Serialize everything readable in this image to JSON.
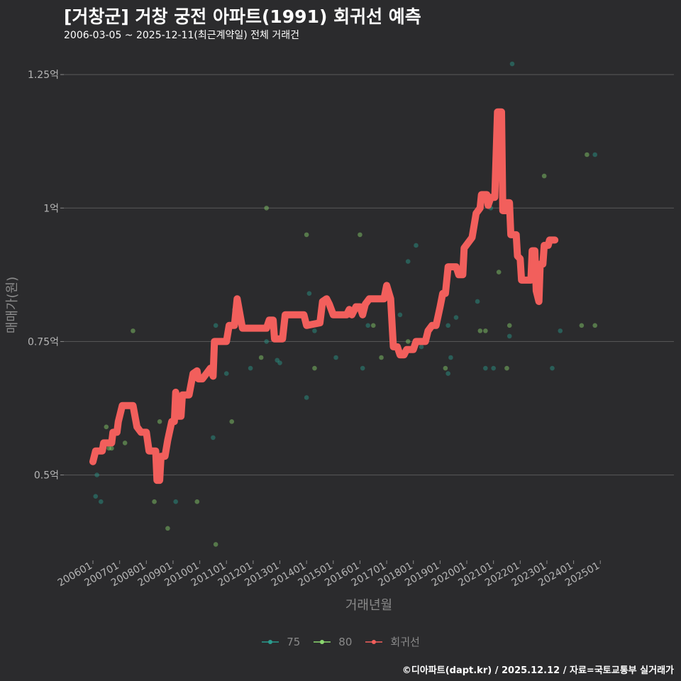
{
  "header": {
    "title": "[거창군] 거창 궁전 아파트(1991) 회귀선 예측",
    "subtitle": "2006-03-05 ~ 2025-12-11(최근계약일) 전체 거래건"
  },
  "caption": "©디아파트(dapt.kr) / 2025.12.12 / 자료=국토교통부 실거래가",
  "colors": {
    "background": "#2b2b2d",
    "grid": "#5a5a5a",
    "series_75": "#2a9d8f",
    "series_80": "#8bd86f",
    "regression": "#f25f5c"
  },
  "chart_data": {
    "type": "scatter",
    "title": "[거창군] 거창 궁전 아파트(1991) 회귀선 예측",
    "subtitle": "2006-03-05 ~ 2025-12-11(최근계약일) 전체 거래건",
    "xlabel": "거래년월",
    "ylabel": "매매가(원)",
    "xlim": [
      2006.0,
      2025.95
    ],
    "ylim": [
      0.34,
      1.29
    ],
    "x_ticks": [
      {
        "x": 2006.0,
        "label": "200601"
      },
      {
        "x": 2007.0,
        "label": "200701"
      },
      {
        "x": 2008.0,
        "label": "200801"
      },
      {
        "x": 2009.0,
        "label": "200901"
      },
      {
        "x": 2010.0,
        "label": "201001"
      },
      {
        "x": 2011.0,
        "label": "201101"
      },
      {
        "x": 2012.0,
        "label": "201201"
      },
      {
        "x": 2013.0,
        "label": "201301"
      },
      {
        "x": 2014.0,
        "label": "201401"
      },
      {
        "x": 2015.0,
        "label": "201501"
      },
      {
        "x": 2016.0,
        "label": "201601"
      },
      {
        "x": 2017.0,
        "label": "201701"
      },
      {
        "x": 2018.0,
        "label": "201801"
      },
      {
        "x": 2019.0,
        "label": "201901"
      },
      {
        "x": 2020.0,
        "label": "202001"
      },
      {
        "x": 2021.0,
        "label": "202101"
      },
      {
        "x": 2022.0,
        "label": "202201"
      },
      {
        "x": 2023.0,
        "label": "202301"
      },
      {
        "x": 2024.0,
        "label": "202401"
      },
      {
        "x": 2025.0,
        "label": "202501"
      }
    ],
    "y_ticks": [
      {
        "y": 0.5,
        "label": "0.5억"
      },
      {
        "y": 0.75,
        "label": "0.75억"
      },
      {
        "y": 1.0,
        "label": "1억"
      },
      {
        "y": 1.25,
        "label": "1.25억"
      }
    ],
    "legend": [
      {
        "name": "75",
        "color": "#2a9d8f"
      },
      {
        "name": "80",
        "color": "#8bd86f"
      },
      {
        "name": "회귀선",
        "color": "#f25f5c"
      }
    ],
    "series": [
      {
        "name": "75",
        "type": "scatter",
        "points": [
          [
            2006.1,
            0.46
          ],
          [
            2006.15,
            0.5
          ],
          [
            2006.3,
            0.45
          ],
          [
            2009.1,
            0.45
          ],
          [
            2010.5,
            0.57
          ],
          [
            2010.6,
            0.78
          ],
          [
            2011.0,
            0.69
          ],
          [
            2011.3,
            0.81
          ],
          [
            2011.9,
            0.7
          ],
          [
            2012.5,
            0.75
          ],
          [
            2012.9,
            0.715
          ],
          [
            2013.0,
            0.71
          ],
          [
            2014.0,
            0.645
          ],
          [
            2014.1,
            0.84
          ],
          [
            2014.3,
            0.77
          ],
          [
            2015.1,
            0.72
          ],
          [
            2015.7,
            0.8
          ],
          [
            2016.3,
            0.78
          ],
          [
            2016.1,
            0.7
          ],
          [
            2017.5,
            0.8
          ],
          [
            2017.8,
            0.9
          ],
          [
            2018.1,
            0.93
          ],
          [
            2018.3,
            0.74
          ],
          [
            2019.3,
            0.69
          ],
          [
            2019.3,
            0.78
          ],
          [
            2019.4,
            0.72
          ],
          [
            2019.6,
            0.795
          ],
          [
            2020.4,
            0.825
          ],
          [
            2020.7,
            0.7
          ],
          [
            2020.9,
            1.0
          ],
          [
            2021.0,
            0.7
          ],
          [
            2021.1,
            1.15
          ],
          [
            2021.6,
            0.76
          ],
          [
            2021.7,
            1.27
          ],
          [
            2023.2,
            0.7
          ],
          [
            2023.5,
            0.77
          ],
          [
            2024.8,
            1.1
          ]
        ]
      },
      {
        "name": "80",
        "type": "scatter",
        "points": [
          [
            2006.5,
            0.59
          ],
          [
            2006.6,
            0.55
          ],
          [
            2006.7,
            0.55
          ],
          [
            2006.9,
            0.58
          ],
          [
            2007.2,
            0.56
          ],
          [
            2007.5,
            0.77
          ],
          [
            2008.3,
            0.45
          ],
          [
            2008.5,
            0.6
          ],
          [
            2008.8,
            0.4
          ],
          [
            2009.9,
            0.45
          ],
          [
            2010.6,
            0.37
          ],
          [
            2011.2,
            0.6
          ],
          [
            2012.3,
            0.72
          ],
          [
            2012.5,
            1.0
          ],
          [
            2014.0,
            0.95
          ],
          [
            2014.3,
            0.7
          ],
          [
            2016.0,
            0.95
          ],
          [
            2016.5,
            0.78
          ],
          [
            2016.8,
            0.72
          ],
          [
            2017.8,
            0.75
          ],
          [
            2019.2,
            0.7
          ],
          [
            2020.7,
            0.77
          ],
          [
            2021.5,
            0.7
          ],
          [
            2021.6,
            0.78
          ],
          [
            2022.9,
            1.06
          ],
          [
            2024.3,
            0.78
          ],
          [
            2024.5,
            1.1
          ],
          [
            2024.8,
            0.78
          ],
          [
            2021.2,
            0.88
          ],
          [
            2020.5,
            0.77
          ]
        ]
      },
      {
        "name": "회귀선",
        "type": "line",
        "points": [
          [
            2006.0,
            0.525
          ],
          [
            2006.1,
            0.545
          ],
          [
            2006.35,
            0.545
          ],
          [
            2006.4,
            0.56
          ],
          [
            2006.7,
            0.56
          ],
          [
            2006.75,
            0.58
          ],
          [
            2006.9,
            0.58
          ],
          [
            2006.95,
            0.6
          ],
          [
            2007.1,
            0.63
          ],
          [
            2007.35,
            0.63
          ],
          [
            2007.5,
            0.63
          ],
          [
            2007.65,
            0.59
          ],
          [
            2007.8,
            0.58
          ],
          [
            2008.0,
            0.58
          ],
          [
            2008.1,
            0.545
          ],
          [
            2008.35,
            0.545
          ],
          [
            2008.4,
            0.49
          ],
          [
            2008.5,
            0.49
          ],
          [
            2008.55,
            0.535
          ],
          [
            2008.7,
            0.535
          ],
          [
            2008.8,
            0.565
          ],
          [
            2008.95,
            0.6
          ],
          [
            2009.05,
            0.6
          ],
          [
            2009.1,
            0.655
          ],
          [
            2009.2,
            0.61
          ],
          [
            2009.3,
            0.61
          ],
          [
            2009.35,
            0.65
          ],
          [
            2009.6,
            0.65
          ],
          [
            2009.75,
            0.69
          ],
          [
            2009.9,
            0.695
          ],
          [
            2009.95,
            0.68
          ],
          [
            2010.1,
            0.68
          ],
          [
            2010.25,
            0.69
          ],
          [
            2010.4,
            0.7
          ],
          [
            2010.5,
            0.685
          ],
          [
            2010.55,
            0.75
          ],
          [
            2011.0,
            0.75
          ],
          [
            2011.1,
            0.78
          ],
          [
            2011.3,
            0.78
          ],
          [
            2011.4,
            0.83
          ],
          [
            2011.6,
            0.775
          ],
          [
            2012.5,
            0.775
          ],
          [
            2012.6,
            0.79
          ],
          [
            2012.75,
            0.79
          ],
          [
            2012.8,
            0.755
          ],
          [
            2013.1,
            0.755
          ],
          [
            2013.2,
            0.8
          ],
          [
            2013.9,
            0.8
          ],
          [
            2014.0,
            0.78
          ],
          [
            2014.5,
            0.785
          ],
          [
            2014.6,
            0.825
          ],
          [
            2014.75,
            0.83
          ],
          [
            2014.85,
            0.82
          ],
          [
            2015.0,
            0.8
          ],
          [
            2015.5,
            0.8
          ],
          [
            2015.6,
            0.81
          ],
          [
            2015.7,
            0.8
          ],
          [
            2015.85,
            0.815
          ],
          [
            2016.0,
            0.815
          ],
          [
            2016.1,
            0.8
          ],
          [
            2016.2,
            0.82
          ],
          [
            2016.35,
            0.83
          ],
          [
            2016.9,
            0.83
          ],
          [
            2017.0,
            0.855
          ],
          [
            2017.15,
            0.83
          ],
          [
            2017.25,
            0.74
          ],
          [
            2017.4,
            0.74
          ],
          [
            2017.5,
            0.725
          ],
          [
            2017.65,
            0.725
          ],
          [
            2017.75,
            0.735
          ],
          [
            2018.0,
            0.735
          ],
          [
            2018.1,
            0.75
          ],
          [
            2018.45,
            0.75
          ],
          [
            2018.55,
            0.77
          ],
          [
            2018.7,
            0.78
          ],
          [
            2018.85,
            0.78
          ],
          [
            2019.0,
            0.815
          ],
          [
            2019.1,
            0.84
          ],
          [
            2019.2,
            0.84
          ],
          [
            2019.3,
            0.89
          ],
          [
            2019.6,
            0.89
          ],
          [
            2019.7,
            0.875
          ],
          [
            2019.85,
            0.875
          ],
          [
            2019.9,
            0.925
          ],
          [
            2020.05,
            0.935
          ],
          [
            2020.2,
            0.945
          ],
          [
            2020.35,
            0.99
          ],
          [
            2020.5,
            1.0
          ],
          [
            2020.55,
            1.025
          ],
          [
            2020.75,
            1.025
          ],
          [
            2020.8,
            1.005
          ],
          [
            2020.9,
            1.02
          ],
          [
            2021.05,
            1.02
          ],
          [
            2021.15,
            1.18
          ],
          [
            2021.3,
            1.18
          ],
          [
            2021.35,
            0.995
          ],
          [
            2021.45,
            0.995
          ],
          [
            2021.5,
            1.01
          ],
          [
            2021.6,
            1.01
          ],
          [
            2021.65,
            0.95
          ],
          [
            2021.85,
            0.95
          ],
          [
            2021.9,
            0.91
          ],
          [
            2022.0,
            0.905
          ],
          [
            2022.05,
            0.865
          ],
          [
            2022.4,
            0.865
          ],
          [
            2022.45,
            0.92
          ],
          [
            2022.55,
            0.92
          ],
          [
            2022.6,
            0.845
          ],
          [
            2022.7,
            0.825
          ],
          [
            2022.75,
            0.895
          ],
          [
            2022.85,
            0.895
          ],
          [
            2022.9,
            0.93
          ],
          [
            2023.05,
            0.93
          ],
          [
            2023.1,
            0.94
          ],
          [
            2023.3,
            0.94
          ]
        ]
      }
    ]
  }
}
